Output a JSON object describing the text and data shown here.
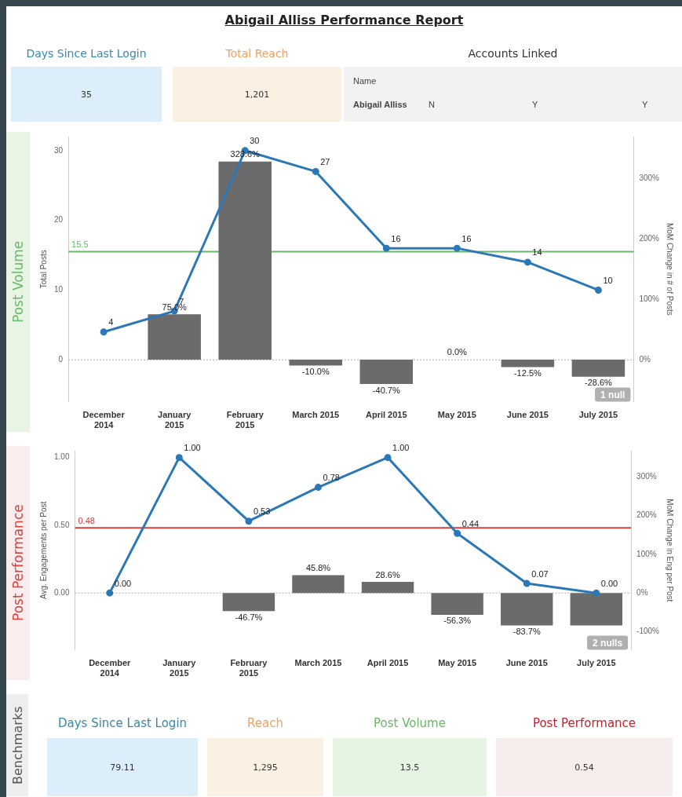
{
  "chart_data": [
    {
      "type": "other",
      "title": "Abigail Alliss Performance Report",
      "annotations": [
        "Days Since Last Login",
        "35",
        "Total Reach",
        "1,201",
        "Accounts Linked",
        "Name",
        "Abigail Alliss",
        "N",
        "Y",
        "Y"
      ]
    },
    {
      "type": "bar",
      "title": "Post Volume",
      "ylabel": "Total Posts",
      "y2label": "MoM Change in # of Posts",
      "categories": [
        "December 2014",
        "January 2015",
        "February 2015",
        "March 2015",
        "April 2015",
        "May 2015",
        "June 2015",
        "July 2015"
      ],
      "series": [
        {
          "type": "bar",
          "axis": "y2",
          "color": "#6b6b6b",
          "values": [
            null,
            75.0,
            328.6,
            -10.0,
            -40.7,
            0.0,
            -12.5,
            -28.6
          ],
          "value_labels": [
            null,
            "75.0%",
            "328.6%",
            "-10.0%",
            "-40.7%",
            "0.0%",
            "-12.5%",
            "-28.6%"
          ]
        },
        {
          "type": "line",
          "color": "#2b78b8",
          "values": [
            4,
            7,
            30,
            27,
            16,
            16,
            14,
            10
          ],
          "value_labels": [
            "4",
            "7",
            "30",
            "27",
            "16",
            "16",
            "14",
            "10"
          ]
        }
      ],
      "marker": "circle",
      "line_style": "solid",
      "ylim": [
        -6,
        32
      ],
      "yticks": [
        0,
        10,
        20,
        30
      ],
      "y2lim": [
        -70,
        370
      ],
      "y2ticks": [
        {
          "value": 0,
          "label": "0%"
        },
        {
          "value": 100,
          "label": "100%"
        },
        {
          "value": 200,
          "label": "200%"
        },
        {
          "value": 300,
          "label": "300%"
        }
      ],
      "ref_lines": [
        {
          "axis": "y",
          "value": 15.5,
          "label": "15.5",
          "color": "#6ab86a"
        },
        {
          "axis": "y",
          "value": 0,
          "label": null,
          "color": "#aaaaaa",
          "line_style": "dotted"
        }
      ],
      "annotations": [
        "1 null"
      ]
    },
    {
      "type": "bar",
      "title": "Post Performance",
      "ylabel": "Avg. Engagements per Post",
      "y2label": "MoM Change in Eng per Post",
      "categories": [
        "December 2014",
        "January 2015",
        "February 2015",
        "March 2015",
        "April 2015",
        "May 2015",
        "June 2015",
        "July 2015"
      ],
      "series": [
        {
          "type": "bar",
          "axis": "y2",
          "color": "#6b6b6b",
          "values": [
            null,
            null,
            -46.7,
            45.8,
            28.6,
            -56.3,
            -83.7,
            -84
          ],
          "value_labels": [
            null,
            null,
            "-46.7%",
            "45.8%",
            "28.6%",
            "-56.3%",
            "-83.7%",
            null
          ]
        },
        {
          "type": "line",
          "color": "#2b78b8",
          "values": [
            0.0,
            1.0,
            0.53,
            0.78,
            1.0,
            0.44,
            0.07,
            0.0
          ],
          "value_labels": [
            "0.00",
            "1.00",
            "0.53",
            "0.78",
            "1.00",
            "0.44",
            "0.07",
            "0.00"
          ]
        }
      ],
      "marker": "circle",
      "line_style": "solid",
      "ylim": [
        -0.42,
        1.05
      ],
      "yticks": [
        {
          "value": 0,
          "label": "0.00"
        },
        {
          "value": 0.5,
          "label": "0.50"
        },
        {
          "value": 1,
          "label": "1.00"
        }
      ],
      "y2lim": [
        -147,
        367.5
      ],
      "y2ticks": [
        {
          "value": -100,
          "label": "-100%"
        },
        {
          "value": 0,
          "label": "0%"
        },
        {
          "value": 100,
          "label": "100%"
        },
        {
          "value": 200,
          "label": "200%"
        },
        {
          "value": 300,
          "label": "300%"
        }
      ],
      "ref_lines": [
        {
          "axis": "y",
          "value": 0.48,
          "label": "0.48",
          "color": "#d9413c"
        },
        {
          "axis": "y",
          "value": 0,
          "label": null,
          "color": "#aaaaaa",
          "line_style": "dotted"
        }
      ],
      "annotations": [
        "2 nulls"
      ]
    },
    {
      "type": "other",
      "title": "Benchmarks",
      "annotations": [
        "Days Since Last Login",
        "79.11",
        "Reach",
        "1,295",
        "Post Volume",
        "13.5",
        "Post Performance",
        "0.54"
      ]
    }
  ]
}
